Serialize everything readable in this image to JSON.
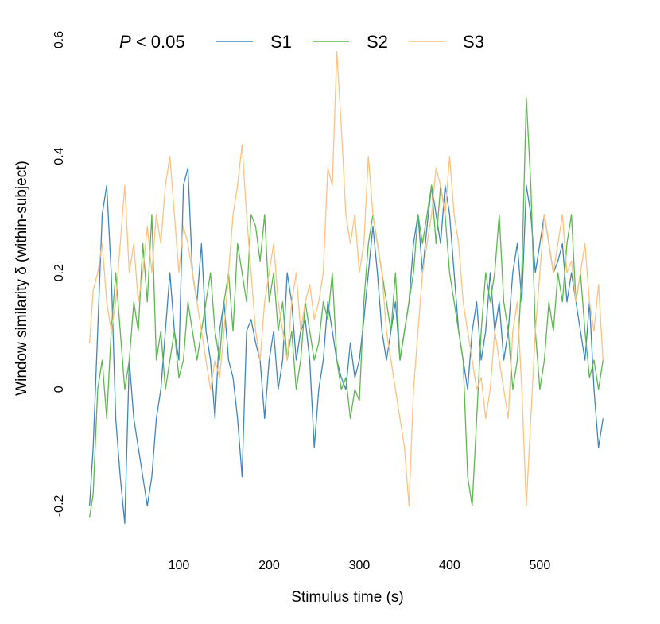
{
  "chart_data": {
    "type": "line",
    "xlabel": "Stimulus time (s)",
    "ylabel": "Window similarity δ (within-subject)",
    "legend_title": [
      "P",
      "< 0.05"
    ],
    "legend": "top",
    "grid": false,
    "xlim": [
      0,
      575
    ],
    "xticks": [
      100,
      200,
      300,
      400,
      500
    ],
    "ylim": [
      -0.25,
      0.6
    ],
    "yticks": [
      -0.2,
      0.0,
      0.2,
      0.4,
      0.6
    ],
    "x": [
      1,
      5,
      10,
      15,
      20,
      25,
      30,
      35,
      40,
      45,
      50,
      55,
      60,
      65,
      70,
      75,
      80,
      85,
      90,
      95,
      100,
      105,
      110,
      115,
      120,
      125,
      130,
      135,
      140,
      145,
      150,
      155,
      160,
      165,
      170,
      175,
      180,
      185,
      190,
      195,
      200,
      205,
      210,
      215,
      220,
      225,
      230,
      235,
      240,
      245,
      250,
      255,
      260,
      265,
      270,
      275,
      280,
      285,
      290,
      295,
      300,
      305,
      310,
      315,
      320,
      325,
      330,
      335,
      340,
      345,
      350,
      355,
      360,
      365,
      370,
      375,
      380,
      385,
      390,
      395,
      400,
      405,
      410,
      415,
      420,
      425,
      430,
      435,
      440,
      445,
      450,
      455,
      460,
      465,
      470,
      475,
      480,
      485,
      490,
      495,
      500,
      505,
      510,
      515,
      520,
      525,
      530,
      535,
      540,
      545,
      550,
      555,
      560,
      565,
      570
    ],
    "series": [
      {
        "name": "S1",
        "color": "#3f86bd",
        "values": [
          -0.2,
          -0.1,
          0.1,
          0.3,
          0.35,
          0.2,
          -0.05,
          -0.15,
          -0.23,
          0.05,
          -0.05,
          -0.1,
          -0.15,
          -0.2,
          -0.15,
          -0.05,
          0.0,
          0.1,
          0.2,
          0.1,
          0.05,
          0.35,
          0.38,
          0.2,
          0.15,
          0.25,
          0.1,
          0.05,
          -0.05,
          0.1,
          0.15,
          0.05,
          0.02,
          -0.05,
          -0.15,
          0.1,
          0.12,
          0.08,
          0.05,
          -0.05,
          0.05,
          0.1,
          0.0,
          0.05,
          0.2,
          0.15,
          0.05,
          0.1,
          0.12,
          0.05,
          -0.1,
          0.0,
          0.05,
          0.15,
          0.1,
          0.05,
          0.02,
          0.0,
          0.08,
          0.02,
          0.05,
          0.12,
          0.2,
          0.28,
          0.2,
          0.1,
          0.05,
          0.1,
          0.15,
          0.05,
          0.1,
          0.15,
          0.25,
          0.3,
          0.2,
          0.28,
          0.35,
          0.3,
          0.25,
          0.35,
          0.3,
          0.2,
          0.1,
          0.05,
          0.0,
          0.1,
          0.15,
          0.05,
          0.1,
          0.2,
          0.1,
          0.15,
          0.05,
          0.1,
          0.2,
          0.25,
          0.15,
          0.35,
          0.3,
          0.2,
          0.25,
          0.3,
          0.25,
          0.2,
          0.22,
          0.25,
          0.15,
          0.2,
          0.15,
          0.1,
          0.05,
          0.15,
          0.0,
          -0.1,
          -0.05
        ]
      },
      {
        "name": "S2",
        "color": "#5cb84e",
        "values": [
          -0.22,
          -0.18,
          0.0,
          0.05,
          -0.05,
          0.1,
          0.2,
          0.1,
          0.0,
          0.05,
          0.15,
          0.1,
          0.25,
          0.15,
          0.3,
          0.05,
          0.1,
          0.0,
          0.05,
          0.1,
          0.02,
          0.05,
          0.15,
          0.1,
          0.05,
          0.1,
          0.15,
          0.2,
          0.1,
          0.05,
          0.15,
          0.2,
          0.1,
          0.25,
          0.2,
          0.15,
          0.3,
          0.28,
          0.22,
          0.3,
          0.15,
          0.2,
          0.1,
          0.15,
          0.05,
          0.1,
          0.0,
          0.05,
          0.15,
          0.1,
          0.05,
          0.08,
          0.15,
          0.12,
          0.2,
          0.05,
          0.0,
          0.02,
          -0.05,
          0.0,
          -0.02,
          0.15,
          0.25,
          0.3,
          0.25,
          0.2,
          0.15,
          0.1,
          0.2,
          0.05,
          0.1,
          0.15,
          0.2,
          0.3,
          0.25,
          0.3,
          0.35,
          0.25,
          0.35,
          0.3,
          0.2,
          0.15,
          0.1,
          0.05,
          -0.15,
          -0.2,
          -0.05,
          0.1,
          0.2,
          0.15,
          0.2,
          0.3,
          0.15,
          0.1,
          0.0,
          0.05,
          0.2,
          0.5,
          0.35,
          0.1,
          0.0,
          0.05,
          0.15,
          0.1,
          0.2,
          0.15,
          0.25,
          0.3,
          0.15,
          0.2,
          0.1,
          0.02,
          0.05,
          0.0,
          0.05
        ]
      },
      {
        "name": "S3",
        "color": "#fdc27f",
        "values": [
          0.08,
          0.17,
          0.2,
          0.25,
          0.15,
          0.1,
          0.15,
          0.25,
          0.35,
          0.2,
          0.25,
          0.15,
          0.2,
          0.28,
          0.2,
          0.3,
          0.25,
          0.35,
          0.4,
          0.3,
          0.2,
          0.28,
          0.25,
          0.2,
          0.15,
          0.1,
          0.05,
          0.0,
          0.05,
          0.02,
          0.1,
          0.2,
          0.3,
          0.35,
          0.42,
          0.3,
          0.2,
          0.1,
          0.05,
          0.15,
          0.2,
          0.25,
          0.15,
          0.1,
          0.05,
          0.15,
          0.2,
          0.1,
          0.15,
          0.18,
          0.12,
          0.15,
          0.2,
          0.38,
          0.35,
          0.58,
          0.45,
          0.3,
          0.25,
          0.3,
          0.2,
          0.25,
          0.4,
          0.3,
          0.25,
          0.2,
          0.1,
          0.05,
          0.0,
          -0.05,
          -0.1,
          -0.2,
          0.0,
          0.1,
          0.2,
          0.25,
          0.3,
          0.38,
          0.35,
          0.3,
          0.4,
          0.3,
          0.25,
          0.15,
          0.1,
          0.05,
          0.0,
          0.02,
          -0.05,
          0.0,
          0.1,
          0.05,
          0.0,
          -0.05,
          0.1,
          0.15,
          0.0,
          -0.2,
          -0.05,
          0.1,
          0.2,
          0.3,
          0.25,
          0.2,
          0.25,
          0.3,
          0.2,
          0.22,
          0.15,
          0.2,
          0.25,
          0.15,
          0.1,
          0.18,
          0.05
        ]
      }
    ]
  }
}
